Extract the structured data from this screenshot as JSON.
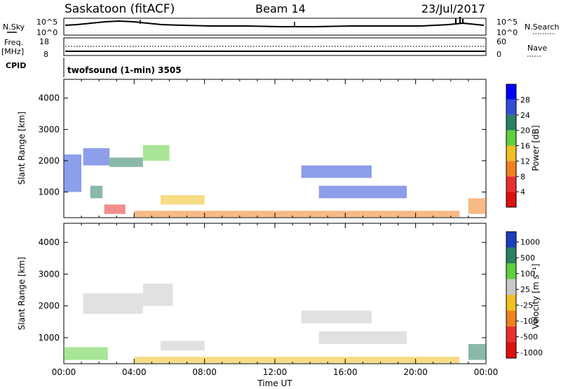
{
  "header": {
    "station": "Saskatoon (fitACF)",
    "beam": "Beam 14",
    "date": "23/Jul/2017"
  },
  "status_panel": {
    "nsky_label": "N.Sky",
    "nsearch_label": "N.Search",
    "nsky_ticks": [
      "10^5",
      "10^0"
    ],
    "nsearch_ticks": [
      "10^5",
      "10^0"
    ],
    "freq_label_top": "Freq.",
    "freq_label_unit": "[MHz]",
    "freq_ticks": [
      "18",
      "8"
    ],
    "nave_label": "Nave",
    "nave_ticks": [
      "60",
      "0"
    ],
    "cpid_label": "CPID",
    "cpid_text": "twofsound (1-min) 3505"
  },
  "chart_data": [
    {
      "type": "heatmap",
      "name": "power",
      "ylabel": "Slant Range [km]",
      "xlabel": "",
      "yticks": [
        1000,
        2000,
        3000,
        4000
      ],
      "ylim": [
        180,
        4600
      ],
      "xlim": [
        0,
        24
      ],
      "colorbar_label": "Power [dB]",
      "colorbar_ticks": [
        "4",
        "8",
        "12",
        "16",
        "20",
        "24",
        "28"
      ],
      "colorbar_colors": [
        "#0000ff",
        "#3050d8",
        "#2a8060",
        "#60d040",
        "#f0c020",
        "#f08020",
        "#e83030",
        "#e01010"
      ],
      "regions": [
        {
          "t0": 1.1,
          "t1": 2.6,
          "r0": 1850,
          "r1": 2400,
          "color": "#3050d8"
        },
        {
          "t0": 2.6,
          "t1": 4.5,
          "r0": 1800,
          "r1": 2100,
          "color": "#2a8060"
        },
        {
          "t0": 4.5,
          "t1": 6.0,
          "r0": 2000,
          "r1": 2500,
          "color": "#60d040"
        },
        {
          "t0": 1.5,
          "t1": 2.2,
          "r0": 800,
          "r1": 1200,
          "color": "#2a8060"
        },
        {
          "t0": 2.3,
          "t1": 3.5,
          "r0": 300,
          "r1": 600,
          "color": "#e83030"
        },
        {
          "t0": 5.5,
          "t1": 8.0,
          "r0": 600,
          "r1": 900,
          "color": "#f0c020"
        },
        {
          "t0": 4.0,
          "t1": 22.5,
          "r0": 200,
          "r1": 400,
          "color": "#f08020"
        },
        {
          "t0": 13.5,
          "t1": 17.5,
          "r0": 1450,
          "r1": 1850,
          "color": "#3050d8"
        },
        {
          "t0": 14.5,
          "t1": 19.5,
          "r0": 800,
          "r1": 1200,
          "color": "#3050d8"
        },
        {
          "t0": 23.0,
          "t1": 24.0,
          "r0": 300,
          "r1": 800,
          "color": "#f08020"
        },
        {
          "t0": 0.0,
          "t1": 1.0,
          "r0": 1000,
          "r1": 2200,
          "color": "#3050d8"
        }
      ]
    },
    {
      "type": "heatmap",
      "name": "velocity",
      "ylabel": "Slant Range [km]",
      "xlabel": "Time UT",
      "xticks": [
        "00:00",
        "04:00",
        "08:00",
        "12:00",
        "16:00",
        "20:00",
        "00:00"
      ],
      "yticks": [
        1000,
        2000,
        3000,
        4000
      ],
      "ylim": [
        180,
        4600
      ],
      "xlim": [
        0,
        24
      ],
      "colorbar_label": "Velocity [m s⁻¹]",
      "colorbar_ticks": [
        "1000",
        "500",
        "100",
        "25",
        "-25",
        "-100",
        "-500",
        "-1000"
      ],
      "colorbar_colors": [
        "#1d3fbe",
        "#2a8060",
        "#60d040",
        "#c8c8c8",
        "#f0c020",
        "#f08020",
        "#e83030",
        "#e01010"
      ],
      "regions": [
        {
          "t0": 1.1,
          "t1": 4.5,
          "r0": 1750,
          "r1": 2400,
          "color": "#c8c8c8"
        },
        {
          "t0": 4.5,
          "t1": 6.2,
          "r0": 2000,
          "r1": 2700,
          "color": "#c8c8c8"
        },
        {
          "t0": 0.0,
          "t1": 2.5,
          "r0": 300,
          "r1": 700,
          "color": "#60d040"
        },
        {
          "t0": 5.5,
          "t1": 8.0,
          "r0": 600,
          "r1": 900,
          "color": "#c8c8c8"
        },
        {
          "t0": 4.0,
          "t1": 22.5,
          "r0": 200,
          "r1": 400,
          "color": "#f0c020"
        },
        {
          "t0": 13.5,
          "t1": 17.5,
          "r0": 1450,
          "r1": 1850,
          "color": "#c8c8c8"
        },
        {
          "t0": 14.5,
          "t1": 19.5,
          "r0": 800,
          "r1": 1200,
          "color": "#c8c8c8"
        },
        {
          "t0": 23.0,
          "t1": 24.0,
          "r0": 300,
          "r1": 800,
          "color": "#2a8060"
        }
      ]
    }
  ]
}
